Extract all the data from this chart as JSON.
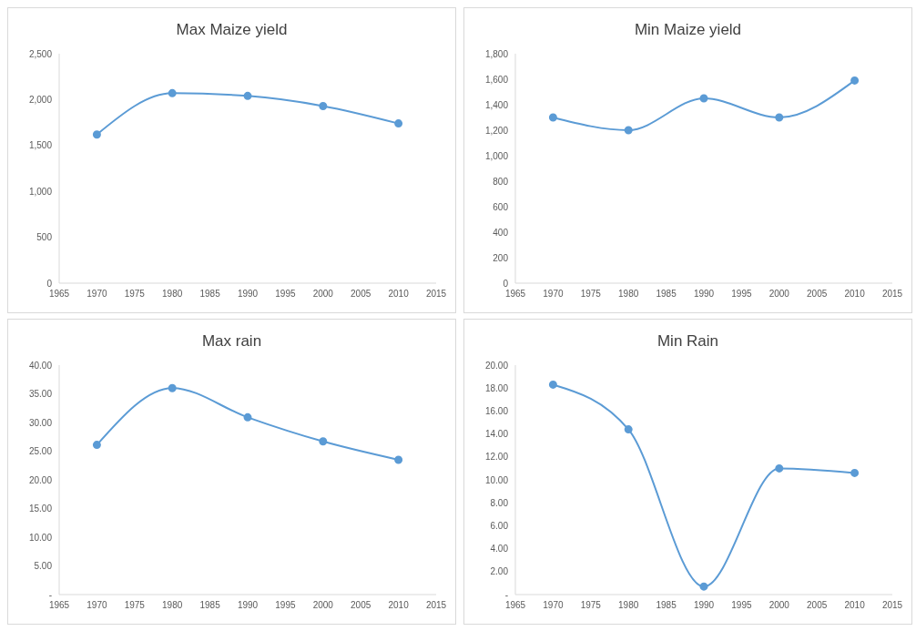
{
  "chart_data": [
    {
      "type": "line",
      "title": "Max Maize yield",
      "x": [
        1970,
        1980,
        1990,
        2000,
        2010
      ],
      "series": [
        {
          "color": "#5b9bd5",
          "values": [
            1620,
            2070,
            2040,
            1930,
            1740
          ]
        }
      ],
      "xlim": [
        1965,
        2015
      ],
      "xticks": [
        1965,
        1970,
        1975,
        1980,
        1985,
        1990,
        1995,
        2000,
        2005,
        2010,
        2015
      ],
      "ylim": [
        0,
        2500
      ],
      "yticks": [
        0,
        500,
        {
          "value": 1000,
          "label": "1,000"
        },
        {
          "value": 1500,
          "label": "1,500"
        },
        {
          "value": 2000,
          "label": "2,000"
        },
        {
          "value": 2500,
          "label": "2,500"
        }
      ],
      "grid": false,
      "legend": false,
      "marker": "circle"
    },
    {
      "type": "line",
      "title": "Min Maize yield",
      "x": [
        1970,
        1980,
        1990,
        2000,
        2010
      ],
      "series": [
        {
          "color": "#5b9bd5",
          "values": [
            1300,
            1200,
            1450,
            1300,
            1590
          ]
        }
      ],
      "xlim": [
        1965,
        2015
      ],
      "xticks": [
        1965,
        1970,
        1975,
        1980,
        1985,
        1990,
        1995,
        2000,
        2005,
        2010,
        2015
      ],
      "ylim": [
        0,
        1800
      ],
      "yticks": [
        0,
        200,
        400,
        600,
        800,
        {
          "value": 1000,
          "label": "1,000"
        },
        {
          "value": 1200,
          "label": "1,200"
        },
        {
          "value": 1400,
          "label": "1,400"
        },
        {
          "value": 1600,
          "label": "1,600"
        },
        {
          "value": 1800,
          "label": "1,800"
        }
      ],
      "grid": false,
      "legend": false,
      "marker": "circle"
    },
    {
      "type": "line",
      "title": "Max rain",
      "x": [
        1970,
        1980,
        1990,
        2000,
        2010
      ],
      "series": [
        {
          "color": "#5b9bd5",
          "values": [
            26.1,
            36.0,
            30.9,
            26.7,
            23.5
          ]
        }
      ],
      "xlim": [
        1965,
        2015
      ],
      "xticks": [
        1965,
        1970,
        1975,
        1980,
        1985,
        1990,
        1995,
        2000,
        2005,
        2010,
        2015
      ],
      "ylim": [
        0,
        40
      ],
      "yticks": [
        {
          "value": 0,
          "label": "-"
        },
        {
          "value": 5,
          "label": "5.00"
        },
        {
          "value": 10,
          "label": "10.00"
        },
        {
          "value": 15,
          "label": "15.00"
        },
        {
          "value": 20,
          "label": "20.00"
        },
        {
          "value": 25,
          "label": "25.00"
        },
        {
          "value": 30,
          "label": "30.00"
        },
        {
          "value": 35,
          "label": "35.00"
        },
        {
          "value": 40,
          "label": "40.00"
        }
      ],
      "grid": false,
      "legend": false,
      "marker": "circle"
    },
    {
      "type": "line",
      "title": "Min Rain",
      "x": [
        1970,
        1980,
        1990,
        2000,
        2010
      ],
      "series": [
        {
          "color": "#5b9bd5",
          "values": [
            18.3,
            14.4,
            0.7,
            11.0,
            10.6
          ]
        }
      ],
      "xlim": [
        1965,
        2015
      ],
      "xticks": [
        1965,
        1970,
        1975,
        1980,
        1985,
        1990,
        1995,
        2000,
        2005,
        2010,
        2015
      ],
      "ylim": [
        0,
        20
      ],
      "yticks": [
        {
          "value": 0,
          "label": "-"
        },
        {
          "value": 2,
          "label": "2.00"
        },
        {
          "value": 4,
          "label": "4.00"
        },
        {
          "value": 6,
          "label": "6.00"
        },
        {
          "value": 8,
          "label": "8.00"
        },
        {
          "value": 10,
          "label": "10.00"
        },
        {
          "value": 12,
          "label": "12.00"
        },
        {
          "value": 14,
          "label": "14.00"
        },
        {
          "value": 16,
          "label": "16.00"
        },
        {
          "value": 18,
          "label": "18.00"
        },
        {
          "value": 20,
          "label": "20.00"
        }
      ],
      "grid": false,
      "legend": false,
      "marker": "circle"
    }
  ]
}
